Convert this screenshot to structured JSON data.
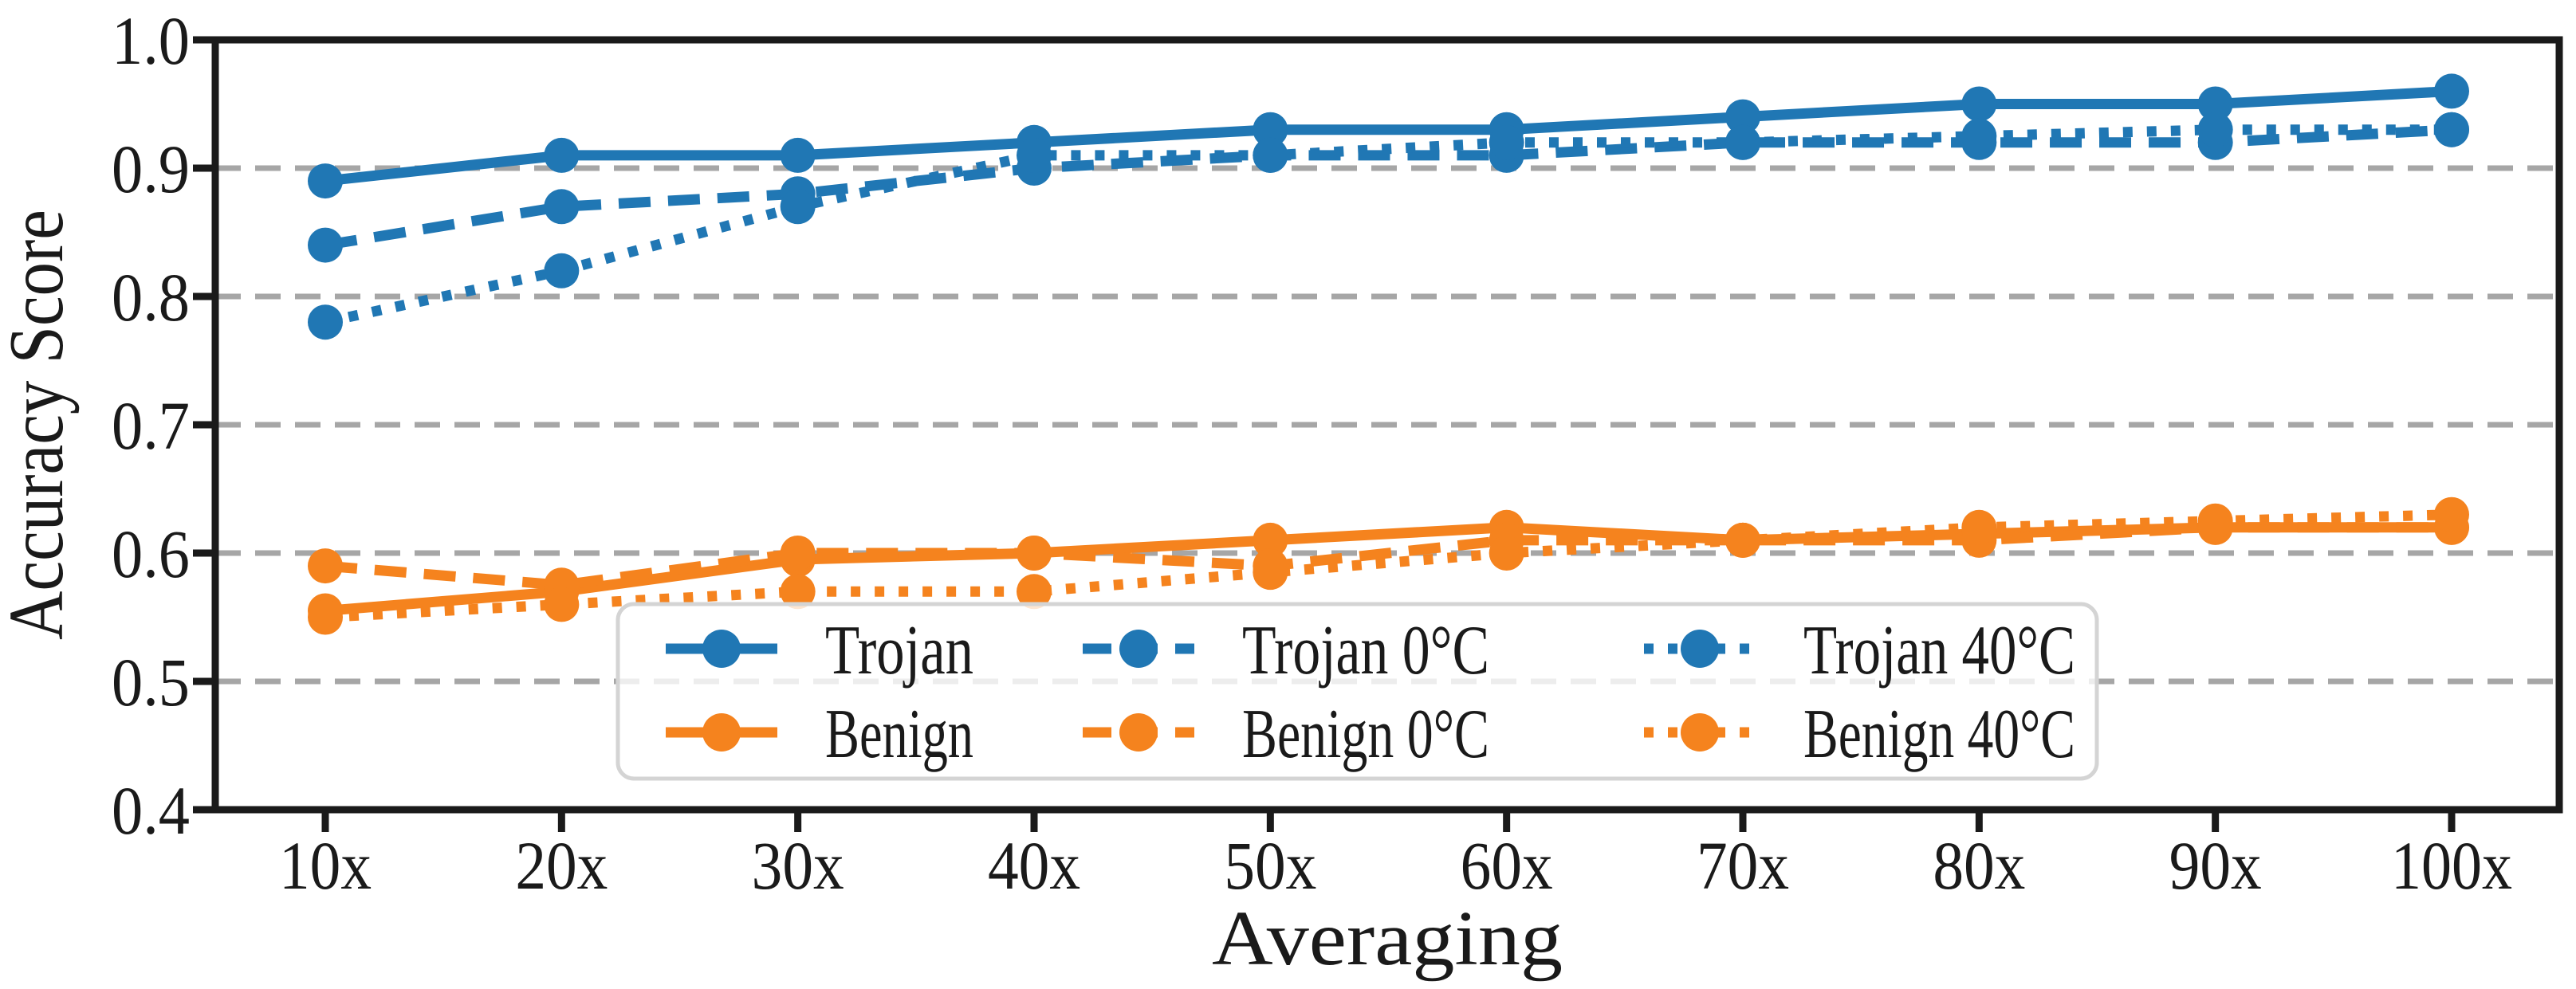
{
  "chart_data": {
    "type": "line",
    "title": "",
    "xlabel": "Averaging",
    "ylabel": "Accuracy Score",
    "categories": [
      "10x",
      "20x",
      "30x",
      "40x",
      "50x",
      "60x",
      "70x",
      "80x",
      "90x",
      "100x"
    ],
    "ylim": [
      0.4,
      1.0
    ],
    "ytick_values": [
      1.0,
      0.9,
      0.8,
      0.7,
      0.6,
      0.5,
      0.4
    ],
    "ytick_labels": [
      "1.0",
      "0.9",
      "0.8",
      "0.7",
      "0.6",
      "0.5",
      "0.4"
    ],
    "gridlines_y": [
      0.9,
      0.8,
      0.7,
      0.6,
      0.5
    ],
    "grid_style": "horizontal gray dashed",
    "legend_position": "lower center inside plot, 2 rows x 3 columns",
    "series": [
      {
        "name": "Trojan",
        "color": "#2077b4",
        "line_style": "solid",
        "values": [
          0.89,
          0.91,
          0.91,
          0.92,
          0.93,
          0.93,
          0.94,
          0.95,
          0.95,
          0.96
        ]
      },
      {
        "name": "Trojan 0°C",
        "color": "#2077b4",
        "line_style": "dashed",
        "values": [
          0.84,
          0.87,
          0.88,
          0.9,
          0.91,
          0.91,
          0.92,
          0.92,
          0.92,
          0.93
        ]
      },
      {
        "name": "Trojan 40°C",
        "color": "#2077b4",
        "line_style": "dotted",
        "values": [
          0.78,
          0.82,
          0.87,
          0.91,
          0.91,
          0.92,
          0.92,
          0.925,
          0.93,
          0.93
        ]
      },
      {
        "name": "Benign",
        "color": "#f5831e",
        "line_style": "solid",
        "values": [
          0.555,
          0.57,
          0.595,
          0.6,
          0.61,
          0.62,
          0.61,
          0.615,
          0.62,
          0.62
        ]
      },
      {
        "name": "Benign 0°C",
        "color": "#f5831e",
        "line_style": "dashed",
        "values": [
          0.59,
          0.575,
          0.6,
          0.6,
          0.59,
          0.61,
          0.61,
          0.61,
          0.62,
          0.62
        ]
      },
      {
        "name": "Benign 40°C",
        "color": "#f5831e",
        "line_style": "dotted",
        "values": [
          0.55,
          0.56,
          0.57,
          0.57,
          0.585,
          0.6,
          0.61,
          0.62,
          0.625,
          0.63
        ]
      }
    ],
    "legend_columns": [
      {
        "line_style": "solid",
        "entries": [
          "Trojan",
          "Benign"
        ]
      },
      {
        "line_style": "dashed",
        "entries": [
          "Trojan 0°C",
          "Benign 0°C"
        ]
      },
      {
        "line_style": "dotted",
        "entries": [
          "Trojan 40°C",
          "Benign 40°C"
        ]
      }
    ],
    "colors": {
      "trojan_blue": "#2077b4",
      "benign_orange": "#f5831e",
      "gridline_gray": "#a6a6a6",
      "spine_black": "#1a1a1a",
      "legend_border": "#d4d4d4",
      "legend_fill": "rgba(255,255,255,0.8)"
    }
  }
}
